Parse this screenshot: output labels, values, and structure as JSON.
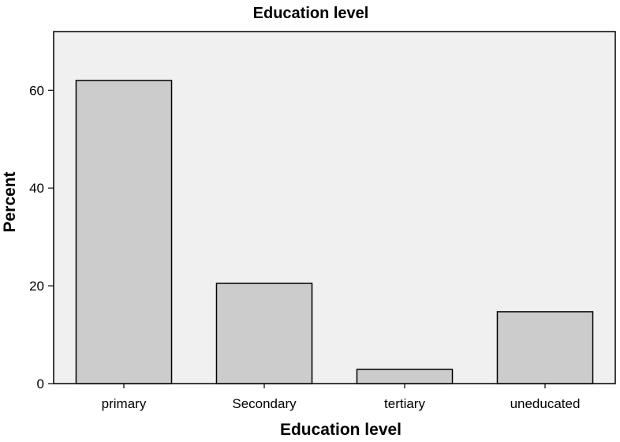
{
  "chart_data": {
    "type": "bar",
    "title": "Education level",
    "xlabel": "Education level",
    "ylabel": "Percent",
    "categories": [
      "primary",
      "Secondary",
      "tertiary",
      "uneducated"
    ],
    "values": [
      62.0,
      20.5,
      2.9,
      14.7
    ],
    "ylim": [
      0,
      72
    ],
    "yticks": [
      0,
      20,
      40,
      60
    ],
    "grid": false,
    "colors": {
      "plot_background": "#f0f0f0",
      "bar_fill": "#cccccc",
      "bar_stroke": "#000000"
    }
  }
}
